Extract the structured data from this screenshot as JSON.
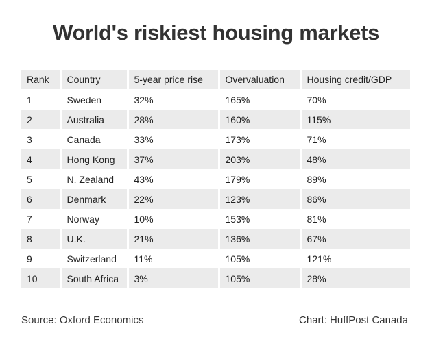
{
  "chart_data": {
    "type": "table",
    "title": "World's riskiest housing markets",
    "columns": [
      "Rank",
      "Country",
      "5-year price rise",
      "Overvaluation",
      "Housing credit/GDP"
    ],
    "rows": [
      [
        "1",
        "Sweden",
        "32%",
        "165%",
        "70%"
      ],
      [
        "2",
        "Australia",
        "28%",
        "160%",
        "115%"
      ],
      [
        "3",
        "Canada",
        "33%",
        "173%",
        "71%"
      ],
      [
        "4",
        "Hong Kong",
        "37%",
        "203%",
        "48%"
      ],
      [
        "5",
        "N. Zealand",
        "43%",
        "179%",
        "89%"
      ],
      [
        "6",
        "Denmark",
        "22%",
        "123%",
        "86%"
      ],
      [
        "7",
        "Norway",
        "10%",
        "153%",
        "81%"
      ],
      [
        "8",
        "U.K.",
        "21%",
        "136%",
        "67%"
      ],
      [
        "9",
        "Switzerland",
        "11%",
        "105%",
        "121%"
      ],
      [
        "10",
        "South Africa",
        "3%",
        "105%",
        "28%"
      ]
    ],
    "source": "Source: Oxford Economics",
    "credit": "Chart: HuffPost Canada"
  },
  "colors": {
    "shaded_row": "#ebebeb",
    "text": "#222222",
    "title": "#333333"
  }
}
